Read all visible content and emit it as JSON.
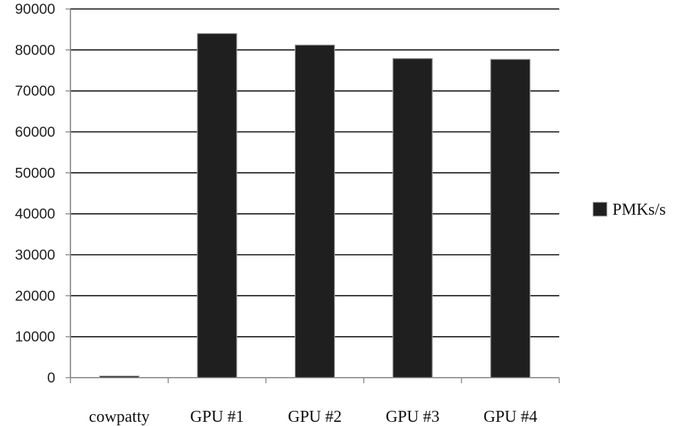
{
  "chart_data": {
    "type": "bar",
    "categories": [
      "cowpatty",
      "GPU #1",
      "GPU #2",
      "GPU #3",
      "GPU #4"
    ],
    "series": [
      {
        "name": "PMKs/s",
        "values": [
          400,
          84000,
          81200,
          77900,
          77700
        ]
      }
    ],
    "yticks": [
      "0",
      "10000",
      "20000",
      "30000",
      "40000",
      "50000",
      "60000",
      "70000",
      "80000",
      "90000"
    ],
    "ylim": [
      0,
      90000
    ],
    "title": "",
    "xlabel": "",
    "ylabel": "",
    "grid": true,
    "legend_position": "right",
    "colors": {
      "bar": "#1f1f1f",
      "bar_edge": "#9a9a9a",
      "grid": "#000000",
      "axis": "#8a8a8a"
    }
  }
}
